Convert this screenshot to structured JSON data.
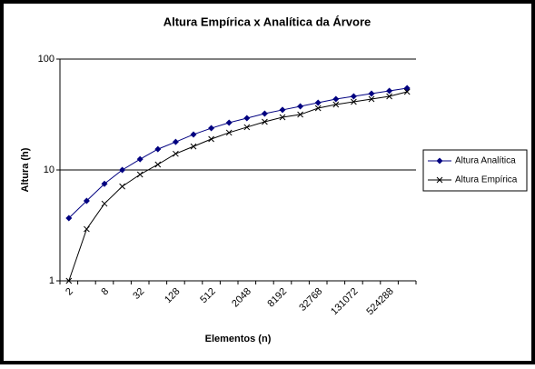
{
  "chart_data": {
    "type": "line",
    "title": "Altura Empírica x Analítica da Árvore",
    "x_label": "Elementos (n)",
    "y_label": "Altura (h)",
    "categories": [
      "2",
      null,
      "8",
      null,
      "32",
      null,
      "128",
      null,
      "512",
      null,
      "2048",
      null,
      "8192",
      null,
      "32768",
      null,
      "131072",
      null,
      "524288",
      null
    ],
    "series": [
      {
        "name": "Altura Analítica",
        "color": "#000080",
        "marker": "diamond",
        "values": [
          3.68,
          5.26,
          7.5,
          10,
          12.5,
          15.4,
          17.9,
          20.9,
          23.8,
          26.7,
          29.3,
          32.2,
          34.8,
          37.5,
          40.4,
          43.6,
          46.1,
          48.8,
          51.6,
          54.7
        ]
      },
      {
        "name": "Altura Empírica",
        "color": "#000000",
        "marker": "x",
        "values": [
          1,
          2.93,
          4.97,
          7.1,
          9.1,
          11.2,
          14.0,
          16.3,
          19.0,
          21.7,
          24.3,
          27.2,
          29.9,
          31.6,
          36.1,
          38.9,
          41.2,
          43.6,
          46.1,
          50.7
        ]
      }
    ],
    "ylim": [
      1,
      100
    ],
    "yticks": [
      1,
      10,
      100
    ],
    "log_y": true,
    "grid": true,
    "legend": "right"
  }
}
